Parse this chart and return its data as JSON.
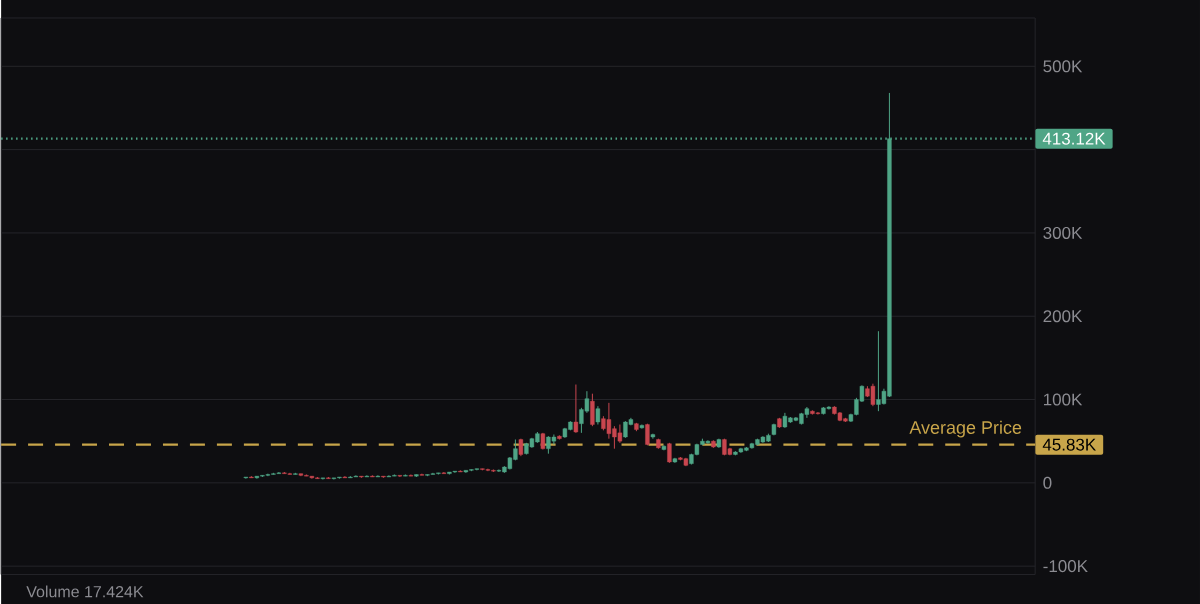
{
  "chart_data": {
    "type": "candlestick",
    "categories": [
      null,
      null,
      null,
      null,
      null,
      null,
      null,
      null,
      null,
      null,
      null,
      null,
      null,
      null,
      null,
      null,
      null,
      null,
      null,
      null,
      null,
      null,
      null,
      null,
      null,
      null,
      null,
      null,
      null,
      null,
      null,
      null,
      null,
      null,
      null,
      null,
      null,
      null,
      null,
      null,
      null,
      null,
      null,
      null,
      null,
      null,
      null,
      null,
      null,
      null,
      null,
      null,
      null,
      null,
      null,
      null,
      null,
      null,
      null,
      null,
      null,
      null,
      null,
      null,
      null,
      null,
      null,
      null,
      null,
      null,
      null,
      null,
      null,
      null,
      null,
      null,
      null,
      null,
      null,
      null,
      null,
      null,
      null,
      null,
      null,
      null,
      null,
      null,
      null,
      null,
      null,
      null,
      null,
      null,
      null,
      null,
      null,
      null,
      null,
      null,
      null,
      null,
      null,
      null,
      null,
      null,
      null,
      null,
      null,
      null,
      null,
      null,
      null,
      null,
      null,
      null,
      null,
      null,
      null,
      null,
      null,
      null,
      null,
      null,
      null,
      null,
      null,
      null,
      null,
      null,
      null,
      null,
      null,
      null,
      null,
      null,
      null,
      null,
      null,
      null,
      null,
      null,
      null,
      null,
      null,
      null,
      null,
      null,
      null,
      null,
      null,
      null,
      null,
      null,
      null,
      null,
      null,
      null,
      null,
      null,
      null,
      null,
      null,
      null,
      null,
      null,
      null,
      null,
      null,
      null,
      null,
      null,
      null,
      null,
      null,
      null,
      null,
      null,
      null,
      null,
      null,
      null,
      null,
      null,
      null,
      null,
      null,
      null
    ],
    "ohlc": [
      null,
      null,
      null,
      null,
      null,
      null,
      null,
      null,
      null,
      null,
      null,
      null,
      null,
      null,
      null,
      null,
      null,
      null,
      null,
      null,
      null,
      null,
      null,
      null,
      null,
      null,
      null,
      null,
      null,
      null,
      null,
      null,
      null,
      null,
      null,
      null,
      null,
      null,
      null,
      null,
      null,
      null,
      null,
      null,
      [
        6000,
        7000,
        5000,
        7000
      ],
      [
        7000,
        8000,
        6000,
        6000
      ],
      [
        6000,
        8000,
        5000,
        8000
      ],
      [
        8000,
        9000,
        7000,
        9000
      ],
      [
        9000,
        11000,
        8000,
        10000
      ],
      [
        10000,
        12000,
        10000,
        11000
      ],
      [
        11000,
        13000,
        11000,
        12000
      ],
      [
        12000,
        13000,
        11000,
        11000
      ],
      [
        11000,
        12000,
        10000,
        10000
      ],
      [
        10000,
        12000,
        10000,
        11000
      ],
      [
        11000,
        11000,
        8000,
        9000
      ],
      [
        9000,
        10000,
        8000,
        8000
      ],
      [
        8000,
        8000,
        5000,
        6000
      ],
      [
        6000,
        7000,
        5000,
        5000
      ],
      [
        5000,
        6000,
        4000,
        6000
      ],
      [
        6000,
        7000,
        5000,
        5000
      ],
      [
        5000,
        6000,
        4000,
        6000
      ],
      [
        6000,
        7000,
        5000,
        7000
      ],
      [
        7000,
        8000,
        6000,
        6000
      ],
      [
        6000,
        8000,
        6000,
        7000
      ],
      [
        7000,
        9000,
        7000,
        8000
      ],
      [
        8000,
        8000,
        6000,
        7000
      ],
      [
        7000,
        9000,
        7000,
        8000
      ],
      [
        8000,
        9000,
        7000,
        7000
      ],
      [
        7000,
        9000,
        7000,
        8000
      ],
      [
        8000,
        8000,
        6000,
        7000
      ],
      [
        7000,
        9000,
        7000,
        8000
      ],
      [
        8000,
        10000,
        8000,
        9000
      ],
      [
        9000,
        9000,
        7000,
        8000
      ],
      [
        8000,
        10000,
        8000,
        9000
      ],
      [
        9000,
        10000,
        8000,
        8000
      ],
      [
        8000,
        10000,
        7000,
        10000
      ],
      [
        10000,
        11000,
        9000,
        9000
      ],
      [
        9000,
        10000,
        8000,
        10000
      ],
      [
        10000,
        12000,
        10000,
        11000
      ],
      [
        11000,
        12000,
        10000,
        12000
      ],
      [
        12000,
        13000,
        11000,
        11000
      ],
      [
        11000,
        13000,
        10000,
        13000
      ],
      [
        13000,
        14000,
        12000,
        14000
      ],
      [
        14000,
        15000,
        13000,
        13000
      ],
      [
        13000,
        15000,
        12000,
        15000
      ],
      [
        15000,
        16000,
        14000,
        16000
      ],
      [
        16000,
        17000,
        15000,
        17000
      ],
      [
        17000,
        17000,
        15000,
        16000
      ],
      [
        16000,
        17000,
        14000,
        15000
      ],
      [
        15000,
        16000,
        13000,
        14000
      ],
      [
        14000,
        16000,
        13000,
        15000
      ],
      [
        13000,
        20000,
        12000,
        19000
      ],
      [
        17000,
        31000,
        16000,
        30000
      ],
      [
        28000,
        52000,
        27000,
        41000
      ],
      [
        52000,
        53000,
        32000,
        34000
      ],
      [
        35000,
        48000,
        34000,
        47000
      ],
      [
        43000,
        54000,
        42000,
        53000
      ],
      [
        49000,
        61000,
        48000,
        59000
      ],
      [
        59000,
        60000,
        40000,
        41000
      ],
      [
        41000,
        56000,
        35000,
        55000
      ],
      [
        50000,
        58000,
        46000,
        55000
      ],
      [
        56000,
        57000,
        52000,
        53000
      ],
      [
        55000,
        66000,
        54000,
        65000
      ],
      [
        64000,
        74000,
        63000,
        73000
      ],
      [
        73000,
        118000,
        60000,
        61000
      ],
      [
        71000,
        90000,
        60000,
        88000
      ],
      [
        86000,
        110000,
        84000,
        101000
      ],
      [
        98000,
        107000,
        68000,
        70000
      ],
      [
        73000,
        92000,
        70000,
        89000
      ],
      [
        77000,
        80000,
        63000,
        65000
      ],
      [
        76000,
        96000,
        53000,
        59000
      ],
      [
        65000,
        68000,
        41000,
        55000
      ],
      [
        60000,
        70000,
        48000,
        50000
      ],
      [
        55000,
        74000,
        54000,
        73000
      ],
      [
        70000,
        78000,
        69000,
        76000
      ],
      [
        71000,
        72000,
        62000,
        64000
      ],
      [
        66000,
        70000,
        65000,
        69000
      ],
      [
        70000,
        71000,
        45000,
        46000
      ],
      [
        55000,
        59000,
        53000,
        58000
      ],
      [
        52000,
        53000,
        41000,
        42000
      ],
      [
        40000,
        45000,
        39000,
        44000
      ],
      [
        47000,
        48000,
        24000,
        25000
      ],
      [
        25000,
        30000,
        24000,
        29000
      ],
      [
        30000,
        31000,
        27000,
        28000
      ],
      [
        29000,
        30000,
        20000,
        21000
      ],
      [
        23000,
        35000,
        22000,
        34000
      ],
      [
        34000,
        47000,
        33000,
        46000
      ],
      [
        46000,
        53000,
        45000,
        50000
      ],
      [
        48000,
        51000,
        47000,
        50000
      ],
      [
        50000,
        51000,
        42000,
        43000
      ],
      [
        43000,
        53000,
        42000,
        52000
      ],
      [
        52000,
        53000,
        33000,
        34000
      ],
      [
        41000,
        42000,
        33000,
        34000
      ],
      [
        34000,
        38000,
        33000,
        37000
      ],
      [
        37000,
        42000,
        36000,
        41000
      ],
      [
        39000,
        43000,
        38000,
        42000
      ],
      [
        42000,
        48000,
        41000,
        47000
      ],
      [
        46000,
        53000,
        45000,
        52000
      ],
      [
        49000,
        56000,
        48000,
        55000
      ],
      [
        50000,
        59000,
        49000,
        57000
      ],
      [
        58000,
        71000,
        57000,
        70000
      ],
      [
        77000,
        78000,
        66000,
        67000
      ],
      [
        67000,
        84000,
        66000,
        80000
      ],
      [
        73000,
        79000,
        72000,
        78000
      ],
      [
        75000,
        79000,
        74000,
        78000
      ],
      [
        71000,
        84000,
        70000,
        83000
      ],
      [
        82000,
        91000,
        78000,
        89000
      ],
      [
        86000,
        87000,
        82000,
        83000
      ],
      [
        84000,
        85000,
        82000,
        83000
      ],
      [
        83000,
        91000,
        82000,
        90000
      ],
      [
        89000,
        92000,
        88000,
        91000
      ],
      [
        91000,
        92000,
        82000,
        83000
      ],
      [
        84000,
        85000,
        74000,
        75000
      ],
      [
        77000,
        78000,
        73000,
        74000
      ],
      [
        74000,
        83000,
        73000,
        82000
      ],
      [
        82000,
        102000,
        81000,
        100000
      ],
      [
        98000,
        117000,
        97000,
        116000
      ],
      [
        113000,
        116000,
        103000,
        104000
      ],
      [
        116000,
        119000,
        92000,
        94000
      ],
      [
        94000,
        182000,
        86000,
        100000
      ],
      [
        95000,
        113000,
        94000,
        110000
      ],
      [
        104000,
        468000,
        103000,
        413120
      ],
      null,
      null,
      null,
      null,
      null,
      null,
      null,
      null,
      null,
      null,
      null,
      null,
      null,
      null,
      null,
      null,
      null,
      null,
      null,
      null,
      null,
      null,
      null,
      null,
      null,
      null
    ],
    "colors": [
      null,
      null,
      null,
      null,
      null,
      null,
      null,
      null,
      null,
      null,
      null,
      null,
      null,
      null,
      null,
      null,
      null,
      null,
      null,
      null,
      null,
      null,
      null,
      null,
      null,
      null,
      null,
      null,
      null,
      null,
      null,
      null,
      null,
      null,
      null,
      null,
      null,
      null,
      null,
      null,
      null,
      null,
      null,
      null,
      "#4fa586",
      "#c8464f",
      "#4fa586",
      "#4fa586",
      "#4fa586",
      "#4fa586",
      "#4fa586",
      "#c8464f",
      "#c8464f",
      "#4fa586",
      "#c8464f",
      "#c8464f",
      "#c8464f",
      "#c8464f",
      "#4fa586",
      "#c8464f",
      "#4fa586",
      "#4fa586",
      "#c8464f",
      "#4fa586",
      "#4fa586",
      "#c8464f",
      "#4fa586",
      "#c8464f",
      "#4fa586",
      "#c8464f",
      "#4fa586",
      "#4fa586",
      "#c8464f",
      "#4fa586",
      "#c8464f",
      "#4fa586",
      "#c8464f",
      "#4fa586",
      "#4fa586",
      "#4fa586",
      "#c8464f",
      "#4fa586",
      "#4fa586",
      "#c8464f",
      "#4fa586",
      "#4fa586",
      "#4fa586",
      "#c8464f",
      "#c8464f",
      "#c8464f",
      "#4fa586",
      "#4fa586",
      "#4fa586",
      "#4fa586",
      "#c8464f",
      "#4fa586",
      "#4fa586",
      "#4fa586",
      "#c8464f",
      "#4fa586",
      "#4fa586",
      "#c8464f",
      "#4fa586",
      "#4fa586",
      "#c8464f",
      "#4fa586",
      "#4fa586",
      "#c8464f",
      "#4fa586",
      "#c8464f",
      "#c8464f",
      "#c8464f",
      "#c8464f",
      "#4fa586",
      "#4fa586",
      "#c8464f",
      "#4fa586",
      "#c8464f",
      "#4fa586",
      "#c8464f",
      "#4fa586",
      "#c8464f",
      "#4fa586",
      "#c8464f",
      "#c8464f",
      "#4fa586",
      "#4fa586",
      "#4fa586",
      "#4fa586",
      "#c8464f",
      "#4fa586",
      "#c8464f",
      "#c8464f",
      "#4fa586",
      "#4fa586",
      "#4fa586",
      "#4fa586",
      "#4fa586",
      "#4fa586",
      "#4fa586",
      "#4fa586",
      "#c8464f",
      "#4fa586",
      "#4fa586",
      "#4fa586",
      "#4fa586",
      "#4fa586",
      "#c8464f",
      "#c8464f",
      "#4fa586",
      "#4fa586",
      "#c8464f",
      "#c8464f",
      "#c8464f",
      "#4fa586",
      "#4fa586",
      "#4fa586",
      "#c8464f",
      "#c8464f",
      "#4fa586",
      "#4fa586",
      "#4fa586",
      null,
      null,
      null,
      null,
      null,
      null,
      null,
      null,
      null,
      null,
      null,
      null,
      null,
      null,
      null,
      null,
      null,
      null,
      null,
      null,
      null,
      null,
      null,
      null,
      null,
      null
    ],
    "ylim": [
      -110000,
      558000
    ],
    "yticks": [
      {
        "value": -100000,
        "label": "-100K"
      },
      0,
      {
        "value": 100000,
        "label": "100K"
      },
      {
        "value": 200000,
        "label": "200K"
      },
      {
        "value": 300000,
        "label": "300K"
      },
      {
        "value": 400000,
        "label": null
      },
      {
        "value": 500000,
        "label": "500K"
      }
    ],
    "tick_labels": "y",
    "grid": "y",
    "ref_lines": [
      {
        "axis": "y",
        "value": 45830,
        "label": "Average Price",
        "color": "#c8a54a",
        "line_style": "dashed"
      },
      {
        "axis": "y",
        "value": 413120,
        "color": "#4fa586",
        "line_style": "dotted"
      }
    ],
    "annotations": [
      "45.83K",
      "413.12K",
      "Volume 17.424K"
    ]
  }
}
